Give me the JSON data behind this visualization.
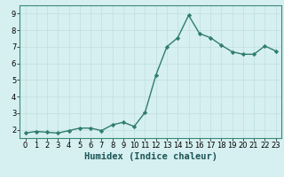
{
  "x": [
    0,
    1,
    2,
    3,
    4,
    5,
    6,
    7,
    8,
    9,
    10,
    11,
    12,
    13,
    14,
    15,
    16,
    17,
    18,
    19,
    20,
    21,
    22,
    23
  ],
  "y": [
    1.8,
    1.9,
    1.85,
    1.8,
    1.95,
    2.1,
    2.1,
    1.95,
    2.3,
    2.45,
    2.2,
    3.05,
    5.3,
    7.0,
    7.55,
    8.9,
    7.8,
    7.55,
    7.1,
    6.7,
    6.55,
    6.55,
    7.05,
    6.75
  ],
  "line_color": "#2e7d6e",
  "marker": "D",
  "markersize": 2.2,
  "linewidth": 1.0,
  "xlabel": "Humidex (Indice chaleur)",
  "ylim": [
    1.5,
    9.5
  ],
  "yticks": [
    2,
    3,
    4,
    5,
    6,
    7,
    8,
    9
  ],
  "xticks": [
    0,
    1,
    2,
    3,
    4,
    5,
    6,
    7,
    8,
    9,
    10,
    11,
    12,
    13,
    14,
    15,
    16,
    17,
    18,
    19,
    20,
    21,
    22,
    23
  ],
  "bg_color": "#d6eff0",
  "grid_color": "#c0dede",
  "xlabel_fontsize": 7.5,
  "tick_fontsize": 6.0,
  "xlim": [
    -0.5,
    23.5
  ]
}
